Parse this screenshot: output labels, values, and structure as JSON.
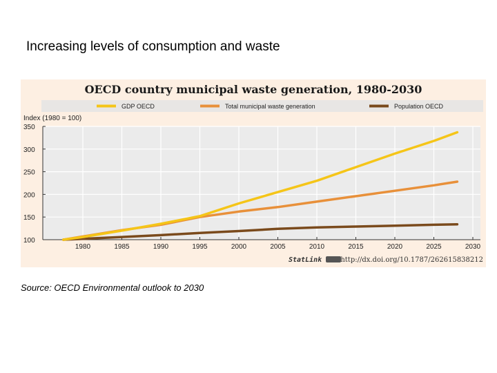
{
  "slide": {
    "title": "Increasing levels of consumption and waste",
    "source": "Source: OECD Environmental outlook to 2030"
  },
  "chart_data": {
    "type": "line",
    "title": "OECD country municipal waste generation, 1980-2030",
    "ylabel": "Index (1980 = 100)",
    "xlabel": "",
    "ylim": [
      100,
      350
    ],
    "xlim": [
      1975,
      2030
    ],
    "yticks": [
      100,
      150,
      200,
      250,
      300,
      350
    ],
    "xticks": [
      1980,
      1985,
      1990,
      1995,
      2000,
      2005,
      2010,
      2015,
      2020,
      2025,
      2030
    ],
    "grid": true,
    "legend_position": "top",
    "x": [
      1977.5,
      1980,
      1985,
      1990,
      1995,
      2000,
      2005,
      2010,
      2015,
      2020,
      2025,
      2028
    ],
    "series": [
      {
        "name": "GDP OECD",
        "color": "#f5c518",
        "values": [
          100,
          106,
          120,
          135,
          152,
          180,
          205,
          230,
          260,
          290,
          318,
          337
        ]
      },
      {
        "name": "Total municipal waste generation",
        "color": "#e8903a",
        "values": [
          100,
          107,
          121,
          133,
          150,
          162,
          172,
          184,
          196,
          208,
          220,
          228
        ]
      },
      {
        "name": "Population OECD",
        "color": "#7a4a1c",
        "values": [
          100,
          102,
          106,
          110,
          115,
          119,
          124,
          127,
          129,
          131,
          133,
          134
        ]
      }
    ],
    "footer": {
      "statlink_label": "StatLink",
      "url": "http://dx.doi.org/10.1787/262615838212"
    }
  }
}
